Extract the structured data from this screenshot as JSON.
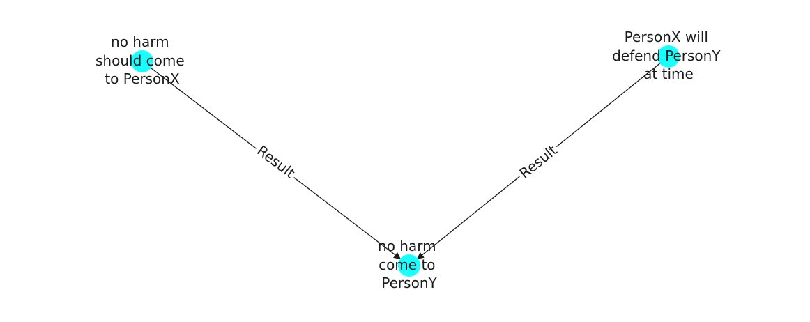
{
  "graph": {
    "colors": {
      "node": "#19ffff",
      "edge": "#1a1a1a",
      "text": "#1a1a1a",
      "background": "#ffffff"
    },
    "nodes": [
      {
        "id": "n1",
        "lines": [
          "no harm",
          "should come",
          "to PersonX"
        ]
      },
      {
        "id": "n2",
        "lines": [
          "PersonX will",
          "defend PersonY",
          "at time"
        ]
      },
      {
        "id": "n3",
        "lines": [
          "no harm",
          "come to",
          "PersonY"
        ]
      }
    ],
    "edges": [
      {
        "id": "e1",
        "source": "n1",
        "target": "n3",
        "label": "Result"
      },
      {
        "id": "e2",
        "source": "n2",
        "target": "n3",
        "label": "Result"
      }
    ]
  }
}
